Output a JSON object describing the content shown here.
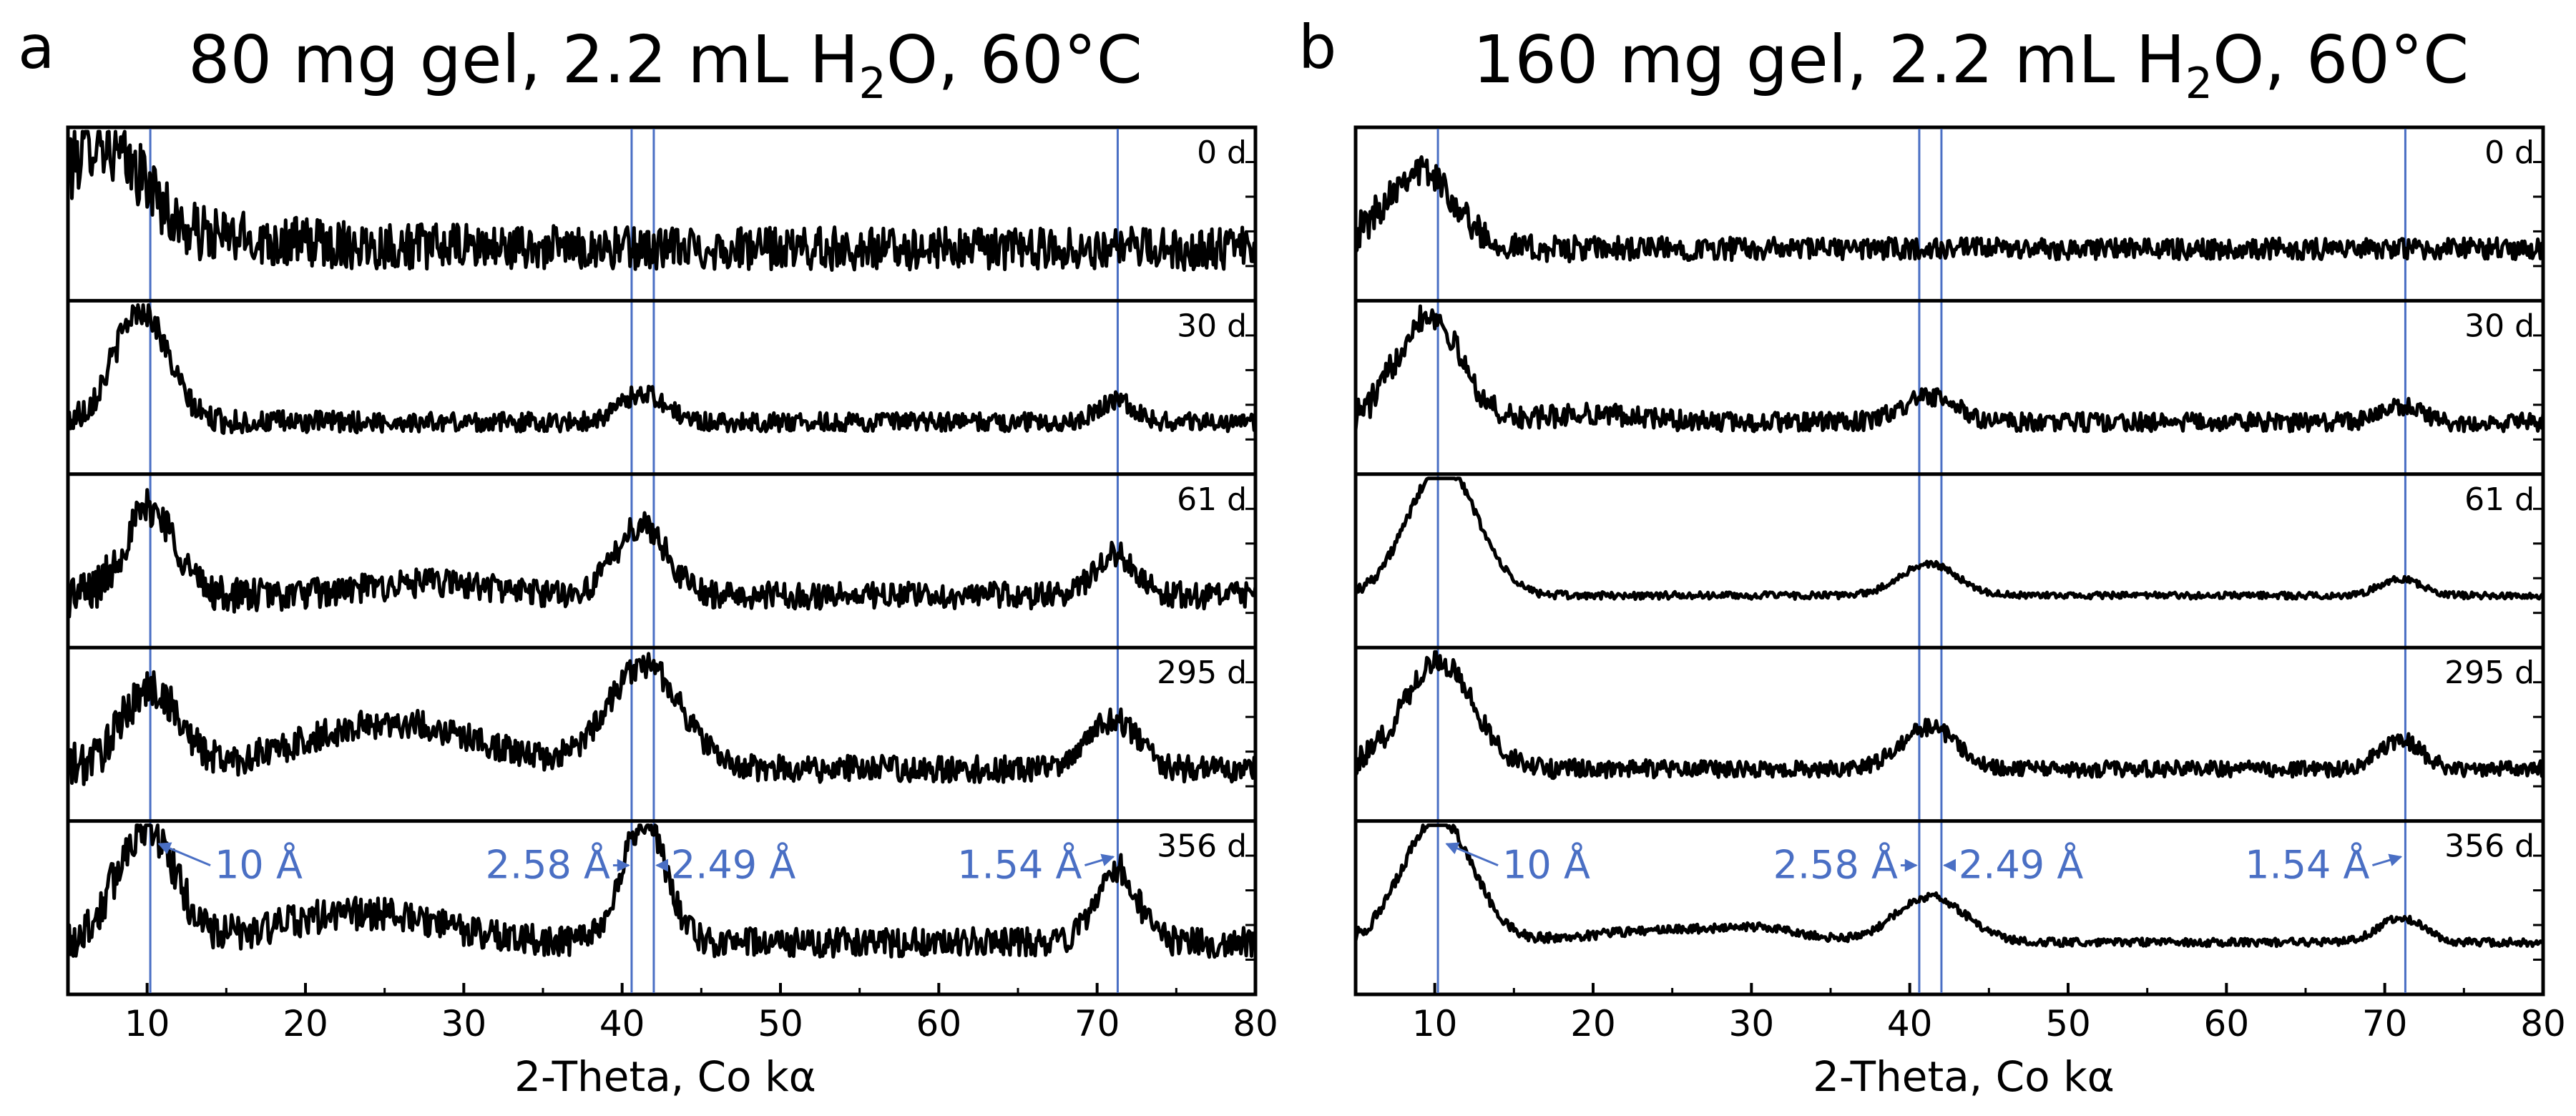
{
  "colors": {
    "trace": "#000000",
    "reference": "#4a6fc4",
    "annotation": "#4a6fc4",
    "frame": "#000000"
  },
  "chart_data": [
    {
      "type": "line",
      "panel_label": "a",
      "title": "80 mg gel, 2.2 mL H",
      "title_sub": "2",
      "title_tail": "O, 60°C",
      "xlabel": "2-Theta, Co kα",
      "ylabel": "",
      "xlim": [
        5,
        80
      ],
      "xticks": [
        "10",
        "20",
        "30",
        "40",
        "50",
        "60",
        "70",
        "80"
      ],
      "xtick_values": [
        10,
        20,
        30,
        40,
        50,
        60,
        70,
        80
      ],
      "reference_lines": [
        10.2,
        40.6,
        42.0,
        71.3
      ],
      "series": [
        {
          "name": "0 d",
          "noise": 0.32,
          "peaks": [
            {
              "c": 6.8,
              "a": 0.9,
              "w": 1.5
            },
            {
              "c": 9.8,
              "a": 0.45,
              "w": 1.2
            }
          ],
          "decay": 0.5
        },
        {
          "name": "30 d",
          "noise": 0.14,
          "peaks": [
            {
              "c": 9.6,
              "a": 1.35,
              "w": 1.7
            },
            {
              "c": 41.3,
              "a": 0.35,
              "w": 1.4
            },
            {
              "c": 71.2,
              "a": 0.25,
              "w": 1.2
            }
          ]
        },
        {
          "name": "61 d",
          "noise": 0.2,
          "peaks": [
            {
              "c": 10.2,
              "a": 1.05,
              "w": 1.6
            },
            {
              "c": 28,
              "a": 0.15,
              "w": 4
            },
            {
              "c": 41.2,
              "a": 0.85,
              "w": 1.6
            },
            {
              "c": 71.2,
              "a": 0.5,
              "w": 1.3
            }
          ]
        },
        {
          "name": "295 d",
          "noise": 0.2,
          "peaks": [
            {
              "c": 10.2,
              "a": 0.95,
              "w": 1.8
            },
            {
              "c": 25.5,
              "a": 0.55,
              "w": 5.5
            },
            {
              "c": 41.4,
              "a": 1.25,
              "w": 2.3
            },
            {
              "c": 71.0,
              "a": 0.6,
              "w": 1.5
            }
          ]
        },
        {
          "name": "356 d",
          "noise": 0.22,
          "peaks": [
            {
              "c": 9.9,
              "a": 1.4,
              "w": 1.8
            },
            {
              "c": 23.5,
              "a": 0.35,
              "w": 5
            },
            {
              "c": 40.8,
              "a": 0.85,
              "w": 1.2
            },
            {
              "c": 42.0,
              "a": 0.8,
              "w": 1.2
            },
            {
              "c": 71.2,
              "a": 0.9,
              "w": 1.3
            }
          ]
        }
      ],
      "annotations": [
        {
          "text": "10 Å",
          "target_x": 10.2
        },
        {
          "text": "2.58 Å",
          "target_x": 40.6
        },
        {
          "text": "2.49 Å",
          "target_x": 42.0
        },
        {
          "text": "1.54 Å",
          "target_x": 71.3
        }
      ]
    },
    {
      "type": "line",
      "panel_label": "b",
      "title": "160 mg gel, 2.2 mL H",
      "title_sub": "2",
      "title_tail": "O, 60°C",
      "xlabel": "2-Theta, Co kα",
      "ylabel": "",
      "xlim": [
        5,
        80
      ],
      "xticks": [
        "10",
        "20",
        "30",
        "40",
        "50",
        "60",
        "70",
        "80"
      ],
      "xtick_values": [
        10,
        20,
        30,
        40,
        50,
        60,
        70,
        80
      ],
      "reference_lines": [
        10.2,
        40.6,
        42.0,
        71.3
      ],
      "series": [
        {
          "name": "0 d",
          "noise": 0.16,
          "peaks": [
            {
              "c": 9.0,
              "a": 0.95,
              "w": 2.2
            }
          ]
        },
        {
          "name": "30 d",
          "noise": 0.14,
          "peaks": [
            {
              "c": 9.6,
              "a": 1.3,
              "w": 2.0
            },
            {
              "c": 20,
              "a": 0.1,
              "w": 3
            },
            {
              "c": 41.2,
              "a": 0.3,
              "w": 1.7
            },
            {
              "c": 71.0,
              "a": 0.2,
              "w": 1.2
            }
          ]
        },
        {
          "name": "61 d",
          "noise": 0.05,
          "peaks": [
            {
              "c": 10.5,
              "a": 1.55,
              "w": 2.2
            },
            {
              "c": 41.2,
              "a": 0.38,
              "w": 1.8
            },
            {
              "c": 71.0,
              "a": 0.2,
              "w": 1.3
            }
          ]
        },
        {
          "name": "295 d",
          "noise": 0.12,
          "peaks": [
            {
              "c": 10.2,
              "a": 1.3,
              "w": 2.2
            },
            {
              "c": 41.2,
              "a": 0.5,
              "w": 1.8
            },
            {
              "c": 71.0,
              "a": 0.35,
              "w": 1.3
            }
          ]
        },
        {
          "name": "356 d",
          "noise": 0.06,
          "peaks": [
            {
              "c": 10.2,
              "a": 1.5,
              "w": 2.2
            },
            {
              "c": 25,
              "a": 0.15,
              "w": 5
            },
            {
              "c": 31,
              "a": 0.1,
              "w": 2.5
            },
            {
              "c": 41.3,
              "a": 0.55,
              "w": 2.2
            },
            {
              "c": 71.0,
              "a": 0.3,
              "w": 1.4
            }
          ]
        }
      ],
      "annotations": [
        {
          "text": "10 Å",
          "target_x": 10.2
        },
        {
          "text": "2.58 Å",
          "target_x": 40.6
        },
        {
          "text": "2.49 Å",
          "target_x": 42.0
        },
        {
          "text": "1.54 Å",
          "target_x": 71.3
        }
      ]
    }
  ]
}
